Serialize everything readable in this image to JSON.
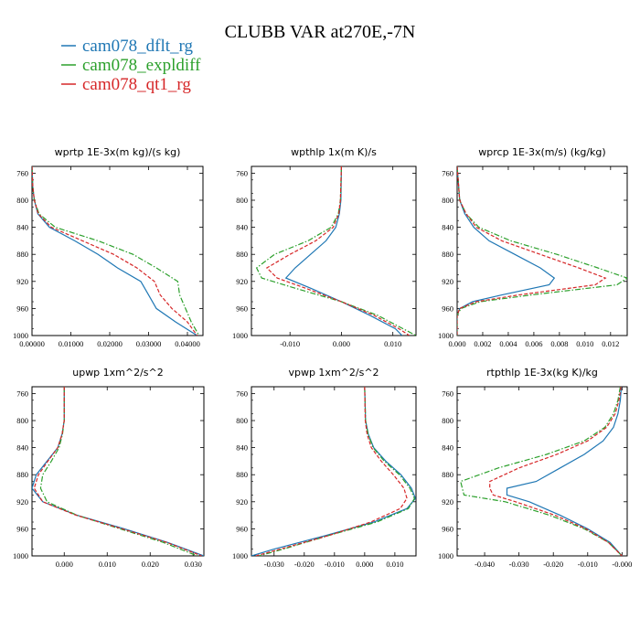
{
  "figure": {
    "title": "CLUBB VAR at270E,-7N",
    "legend": [
      {
        "label": "cam078_dflt_rg",
        "color": "#1f77b4",
        "dash": "solid"
      },
      {
        "label": "cam078_expldiff",
        "color": "#2ca02c",
        "dash": "dashdot"
      },
      {
        "label": "cam078_qt1_rg",
        "color": "#d62728",
        "dash": "dashed"
      }
    ]
  },
  "chart_data": [
    {
      "type": "line",
      "title": "wprtp  1E-3x(m kg)/(s kg)",
      "xlim": [
        0.0,
        0.044
      ],
      "ylim": [
        1000,
        750
      ],
      "xticks": [
        0.0,
        0.01,
        0.02,
        0.03,
        0.04
      ],
      "xtick_labels": [
        "0.00000",
        "0.01000",
        "0.02000",
        "0.03000",
        "0.04000"
      ],
      "yticks": [
        760,
        800,
        840,
        880,
        920,
        960,
        1000
      ],
      "series": [
        {
          "name": "cam078_dflt_rg",
          "y": [
            750,
            780,
            800,
            820,
            840,
            860,
            880,
            900,
            920,
            940,
            960,
            980,
            1000
          ],
          "x": [
            0.0,
            0.0002,
            0.0006,
            0.0015,
            0.0045,
            0.011,
            0.017,
            0.022,
            0.028,
            0.03,
            0.032,
            0.037,
            0.0425
          ]
        },
        {
          "name": "cam078_expldiff",
          "y": [
            750,
            780,
            800,
            820,
            840,
            860,
            880,
            900,
            920,
            940,
            960,
            980,
            1000
          ],
          "x": [
            0.0,
            0.0002,
            0.0006,
            0.0018,
            0.006,
            0.017,
            0.026,
            0.032,
            0.0375,
            0.038,
            0.0395,
            0.041,
            0.043
          ]
        },
        {
          "name": "cam078_qt1_rg",
          "y": [
            750,
            780,
            800,
            820,
            840,
            860,
            880,
            900,
            920,
            940,
            960,
            980,
            1000
          ],
          "x": [
            0.0,
            0.0002,
            0.0006,
            0.0016,
            0.005,
            0.013,
            0.021,
            0.027,
            0.0315,
            0.033,
            0.036,
            0.04,
            0.0425
          ]
        }
      ]
    },
    {
      "type": "line",
      "title": "wpthlp  1x(m K)/s",
      "xlim": [
        -0.0175,
        0.0145
      ],
      "ylim": [
        1000,
        750
      ],
      "xticks": [
        -0.01,
        0.0,
        0.01
      ],
      "xtick_labels": [
        "-0.010",
        "0.000",
        "0.010"
      ],
      "yticks": [
        760,
        800,
        840,
        880,
        920,
        960,
        1000
      ],
      "series": [
        {
          "name": "cam078_dflt_rg",
          "y": [
            750,
            800,
            820,
            840,
            860,
            880,
            900,
            915,
            930,
            950,
            970,
            990,
            1000
          ],
          "x": [
            0.0,
            -0.0001,
            -0.0004,
            -0.0011,
            -0.003,
            -0.006,
            -0.009,
            -0.0108,
            -0.006,
            0.0,
            0.0055,
            0.0105,
            0.0118
          ]
        },
        {
          "name": "cam078_expldiff",
          "y": [
            750,
            800,
            820,
            840,
            860,
            880,
            900,
            915,
            930,
            950,
            970,
            990,
            1000
          ],
          "x": [
            0.0,
            -0.0002,
            -0.0006,
            -0.002,
            -0.0065,
            -0.013,
            -0.0165,
            -0.0155,
            -0.009,
            0.0,
            0.007,
            0.012,
            0.0145
          ]
        },
        {
          "name": "cam078_qt1_rg",
          "y": [
            750,
            800,
            820,
            840,
            860,
            880,
            900,
            915,
            930,
            950,
            970,
            990,
            1000
          ],
          "x": [
            0.0,
            -0.0002,
            -0.0005,
            -0.0016,
            -0.005,
            -0.01,
            -0.0145,
            -0.0125,
            -0.007,
            0.0,
            0.0063,
            0.0112,
            0.0132
          ]
        }
      ]
    },
    {
      "type": "line",
      "title": "wprcp  1E-3x(m/s) (kg/kg)",
      "xlim": [
        0.0,
        0.0133
      ],
      "ylim": [
        1000,
        750
      ],
      "xticks": [
        0.0,
        0.002,
        0.004,
        0.006,
        0.008,
        0.01,
        0.012
      ],
      "xtick_labels": [
        "0.000",
        "0.002",
        "0.004",
        "0.006",
        "0.008",
        "0.010",
        "0.012"
      ],
      "yticks": [
        760,
        800,
        840,
        880,
        920,
        960,
        1000
      ],
      "series": [
        {
          "name": "cam078_dflt_rg",
          "y": [
            750,
            800,
            820,
            840,
            860,
            880,
            900,
            915,
            925,
            940,
            950,
            960,
            970,
            1000
          ],
          "x": [
            0.0,
            0.0002,
            0.0006,
            0.0013,
            0.0025,
            0.0045,
            0.0065,
            0.0076,
            0.0072,
            0.0035,
            0.0012,
            0.0002,
            0.0,
            0.0
          ]
        },
        {
          "name": "cam078_expldiff",
          "y": [
            750,
            800,
            820,
            840,
            860,
            880,
            900,
            915,
            925,
            940,
            950,
            960,
            970,
            1000
          ],
          "x": [
            0.0,
            0.0002,
            0.0007,
            0.0017,
            0.0042,
            0.0078,
            0.011,
            0.0133,
            0.0125,
            0.0058,
            0.0018,
            0.0003,
            0.0,
            0.0
          ]
        },
        {
          "name": "cam078_qt1_rg",
          "y": [
            750,
            800,
            820,
            840,
            860,
            880,
            900,
            915,
            925,
            940,
            950,
            960,
            970,
            1000
          ],
          "x": [
            0.0,
            0.0002,
            0.0007,
            0.0015,
            0.0035,
            0.0065,
            0.0095,
            0.0116,
            0.0108,
            0.0048,
            0.0015,
            0.0002,
            0.0,
            0.0
          ]
        }
      ]
    },
    {
      "type": "line",
      "title": "upwp  1xm^2/s^2",
      "xlim": [
        -0.0075,
        0.0325
      ],
      "ylim": [
        1000,
        750
      ],
      "xticks": [
        0.0,
        0.01,
        0.02,
        0.03
      ],
      "xtick_labels": [
        "0.000",
        "0.010",
        "0.020",
        "0.030"
      ],
      "yticks": [
        760,
        800,
        840,
        880,
        920,
        960,
        1000
      ],
      "series": [
        {
          "name": "cam078_dflt_rg",
          "y": [
            750,
            800,
            820,
            840,
            860,
            880,
            900,
            920,
            940,
            960,
            980,
            1000
          ],
          "x": [
            0.0,
            0.0,
            -0.0005,
            -0.0015,
            -0.004,
            -0.0065,
            -0.0075,
            -0.005,
            0.003,
            0.014,
            0.024,
            0.0325
          ]
        },
        {
          "name": "cam078_expldiff",
          "y": [
            750,
            800,
            820,
            840,
            860,
            880,
            900,
            920,
            940,
            960,
            980,
            1000
          ],
          "x": [
            0.0,
            0.0,
            -0.0004,
            -0.0012,
            -0.003,
            -0.005,
            -0.0055,
            -0.004,
            0.003,
            0.013,
            0.023,
            0.031
          ]
        },
        {
          "name": "cam078_qt1_rg",
          "y": [
            750,
            800,
            820,
            840,
            860,
            880,
            900,
            920,
            940,
            960,
            980,
            1000
          ],
          "x": [
            0.0,
            0.0,
            -0.0005,
            -0.0015,
            -0.0038,
            -0.006,
            -0.007,
            -0.005,
            0.0028,
            0.0135,
            0.0238,
            0.032
          ]
        }
      ]
    },
    {
      "type": "line",
      "title": "vpwp  1xm^2/s^2",
      "xlim": [
        -0.0375,
        0.017
      ],
      "ylim": [
        1000,
        750
      ],
      "xticks": [
        -0.03,
        -0.02,
        -0.01,
        0.0,
        0.01
      ],
      "xtick_labels": [
        "-0.030",
        "-0.020",
        "-0.010",
        "0.000",
        "0.010"
      ],
      "yticks": [
        760,
        800,
        840,
        880,
        920,
        960,
        1000
      ],
      "series": [
        {
          "name": "cam078_dflt_rg",
          "y": [
            750,
            800,
            820,
            840,
            860,
            880,
            900,
            915,
            930,
            950,
            970,
            990,
            1000
          ],
          "x": [
            0.0,
            0.0003,
            0.0012,
            0.003,
            0.007,
            0.012,
            0.0155,
            0.0168,
            0.014,
            0.003,
            -0.013,
            -0.03,
            -0.0375
          ]
        },
        {
          "name": "cam078_expldiff",
          "y": [
            750,
            800,
            820,
            840,
            860,
            880,
            900,
            915,
            930,
            950,
            970,
            990,
            1000
          ],
          "x": [
            0.0,
            0.0003,
            0.0011,
            0.0028,
            0.0065,
            0.0115,
            0.015,
            0.0165,
            0.0145,
            0.004,
            -0.012,
            -0.027,
            -0.035
          ]
        },
        {
          "name": "cam078_qt1_rg",
          "y": [
            750,
            800,
            820,
            840,
            860,
            880,
            900,
            915,
            930,
            950,
            970,
            990,
            1000
          ],
          "x": [
            0.0,
            0.0002,
            0.0008,
            0.0022,
            0.0055,
            0.0095,
            0.013,
            0.014,
            0.0118,
            0.002,
            -0.012,
            -0.028,
            -0.036
          ]
        }
      ]
    },
    {
      "type": "line",
      "title": "rtpthlp  1E-3x(kg K)/kg",
      "xlim": [
        -0.048,
        0.0015
      ],
      "ylim": [
        1000,
        750
      ],
      "xticks": [
        -0.04,
        -0.03,
        -0.02,
        -0.01,
        0.0
      ],
      "xtick_labels": [
        "-0.040",
        "-0.030",
        "-0.020",
        "-0.010",
        "-0.000"
      ],
      "yticks": [
        760,
        800,
        840,
        880,
        920,
        960,
        1000
      ],
      "series": [
        {
          "name": "cam078_dflt_rg",
          "y": [
            750,
            770,
            790,
            810,
            830,
            850,
            870,
            890,
            900,
            910,
            920,
            940,
            960,
            980,
            1000
          ],
          "x": [
            -0.0002,
            -0.0005,
            -0.0012,
            -0.0025,
            -0.0055,
            -0.011,
            -0.018,
            -0.025,
            -0.0335,
            -0.0335,
            -0.027,
            -0.018,
            -0.01,
            -0.0035,
            0.0
          ]
        },
        {
          "name": "cam078_expldiff",
          "y": [
            750,
            770,
            790,
            810,
            830,
            850,
            870,
            890,
            900,
            910,
            920,
            940,
            960,
            980,
            1000
          ],
          "x": [
            -0.0005,
            -0.0012,
            -0.0025,
            -0.005,
            -0.011,
            -0.022,
            -0.036,
            -0.047,
            -0.0465,
            -0.046,
            -0.034,
            -0.021,
            -0.011,
            -0.004,
            0.0
          ]
        },
        {
          "name": "cam078_qt1_rg",
          "y": [
            750,
            770,
            790,
            810,
            830,
            850,
            870,
            890,
            900,
            910,
            920,
            940,
            960,
            980,
            1000
          ],
          "x": [
            -0.0003,
            -0.0009,
            -0.002,
            -0.0045,
            -0.01,
            -0.019,
            -0.03,
            -0.0385,
            -0.0385,
            -0.0375,
            -0.031,
            -0.0195,
            -0.0105,
            -0.004,
            0.0
          ]
        }
      ]
    }
  ]
}
